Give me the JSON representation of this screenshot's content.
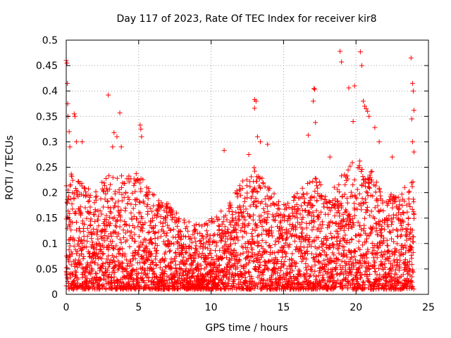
{
  "chart_data": {
    "type": "scatter",
    "title": "Day 117 of 2023, Rate Of TEC Index for receiver kir8",
    "xlabel": "GPS time / hours",
    "ylabel": "ROTI / TECUs",
    "xlim": [
      0,
      25
    ],
    "ylim": [
      0,
      0.5
    ],
    "xticks": [
      "0",
      "5",
      "10",
      "15",
      "20",
      "25"
    ],
    "yticks": [
      "0",
      "0.05",
      "0.1",
      "0.15",
      "0.2",
      "0.25",
      "0.3",
      "0.35",
      "0.4",
      "0.45",
      "0.5"
    ],
    "xtick_values": [
      0,
      5,
      10,
      15,
      20,
      25
    ],
    "ytick_values": [
      0,
      0.05,
      0.1,
      0.15,
      0.2,
      0.25,
      0.3,
      0.35,
      0.4,
      0.45,
      0.5
    ],
    "grid": true,
    "marker": "plus",
    "color": "#ff0000",
    "dense_band": {
      "x_start": 0,
      "x_end": 24,
      "sample_step_hours": 0.02,
      "envelope": [
        {
          "x": 0,
          "low": 0.01,
          "high": 0.25
        },
        {
          "x": 1,
          "low": 0.01,
          "high": 0.22
        },
        {
          "x": 2,
          "low": 0.01,
          "high": 0.2
        },
        {
          "x": 3,
          "low": 0.01,
          "high": 0.25
        },
        {
          "x": 4,
          "low": 0.01,
          "high": 0.23
        },
        {
          "x": 5,
          "low": 0.01,
          "high": 0.24
        },
        {
          "x": 6,
          "low": 0.01,
          "high": 0.2
        },
        {
          "x": 7,
          "low": 0.01,
          "high": 0.18
        },
        {
          "x": 8,
          "low": 0.01,
          "high": 0.15
        },
        {
          "x": 9,
          "low": 0.01,
          "high": 0.14
        },
        {
          "x": 10,
          "low": 0.01,
          "high": 0.15
        },
        {
          "x": 11,
          "low": 0.01,
          "high": 0.17
        },
        {
          "x": 12,
          "low": 0.01,
          "high": 0.22
        },
        {
          "x": 13,
          "low": 0.01,
          "high": 0.25
        },
        {
          "x": 14,
          "low": 0.01,
          "high": 0.21
        },
        {
          "x": 15,
          "low": 0.01,
          "high": 0.18
        },
        {
          "x": 16,
          "low": 0.01,
          "high": 0.2
        },
        {
          "x": 17,
          "low": 0.01,
          "high": 0.24
        },
        {
          "x": 18,
          "low": 0.01,
          "high": 0.21
        },
        {
          "x": 19,
          "low": 0.01,
          "high": 0.24
        },
        {
          "x": 20,
          "low": 0.01,
          "high": 0.27
        },
        {
          "x": 21,
          "low": 0.01,
          "high": 0.25
        },
        {
          "x": 22,
          "low": 0.01,
          "high": 0.2
        },
        {
          "x": 23,
          "low": 0.01,
          "high": 0.2
        },
        {
          "x": 24,
          "low": 0.01,
          "high": 0.24
        }
      ]
    },
    "outliers": [
      [
        0.0,
        0.46
      ],
      [
        0.05,
        0.455
      ],
      [
        0.08,
        0.415
      ],
      [
        0.1,
        0.375
      ],
      [
        0.12,
        0.35
      ],
      [
        0.2,
        0.32
      ],
      [
        0.25,
        0.29
      ],
      [
        0.55,
        0.355
      ],
      [
        0.6,
        0.35
      ],
      [
        0.7,
        0.3
      ],
      [
        1.1,
        0.3
      ],
      [
        2.9,
        0.392
      ],
      [
        3.3,
        0.318
      ],
      [
        3.5,
        0.31
      ],
      [
        3.7,
        0.357
      ],
      [
        3.8,
        0.29
      ],
      [
        3.2,
        0.29
      ],
      [
        5.1,
        0.333
      ],
      [
        5.15,
        0.325
      ],
      [
        5.2,
        0.31
      ],
      [
        10.9,
        0.283
      ],
      [
        12.6,
        0.275
      ],
      [
        13.0,
        0.383
      ],
      [
        13.1,
        0.38
      ],
      [
        13.0,
        0.366
      ],
      [
        13.2,
        0.31
      ],
      [
        13.4,
        0.3
      ],
      [
        13.9,
        0.295
      ],
      [
        16.7,
        0.313
      ],
      [
        17.1,
        0.405
      ],
      [
        17.15,
        0.403
      ],
      [
        17.05,
        0.38
      ],
      [
        17.2,
        0.338
      ],
      [
        18.9,
        0.478
      ],
      [
        19.0,
        0.457
      ],
      [
        19.5,
        0.406
      ],
      [
        19.9,
        0.41
      ],
      [
        20.3,
        0.477
      ],
      [
        20.4,
        0.45
      ],
      [
        20.5,
        0.38
      ],
      [
        20.6,
        0.37
      ],
      [
        20.7,
        0.365
      ],
      [
        20.8,
        0.36
      ],
      [
        20.9,
        0.35
      ],
      [
        19.8,
        0.34
      ],
      [
        21.3,
        0.328
      ],
      [
        21.6,
        0.3
      ],
      [
        23.8,
        0.465
      ],
      [
        23.9,
        0.415
      ],
      [
        23.95,
        0.4
      ],
      [
        24.0,
        0.362
      ],
      [
        23.85,
        0.345
      ],
      [
        23.9,
        0.3
      ],
      [
        24.0,
        0.28
      ],
      [
        22.5,
        0.27
      ],
      [
        18.2,
        0.27
      ]
    ]
  }
}
